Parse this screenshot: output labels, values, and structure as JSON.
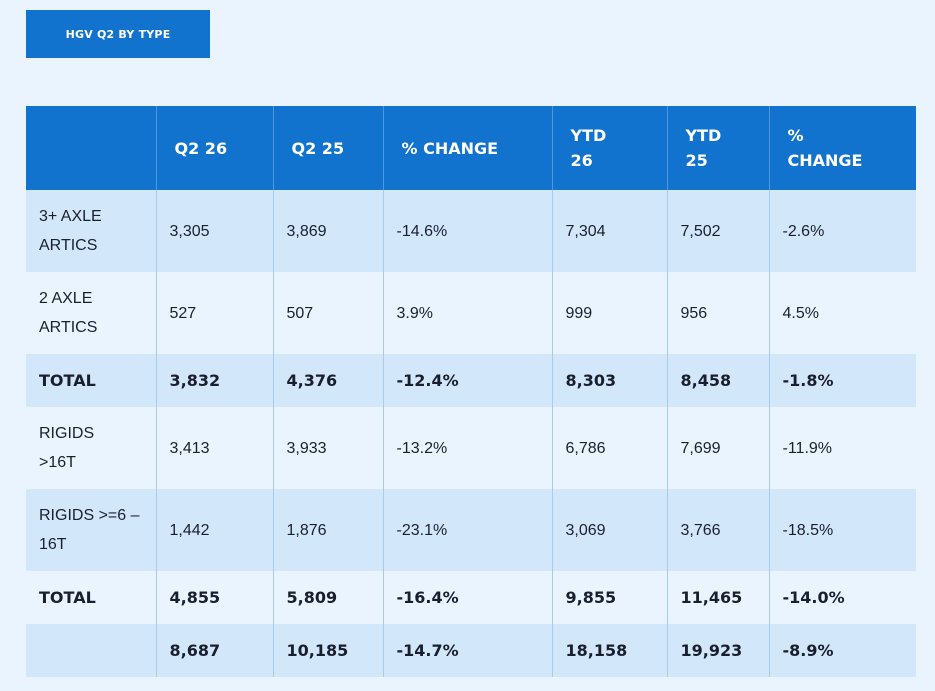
{
  "title": "HGV Q2 BY TYPE",
  "table": {
    "headers": [
      "",
      "Q2 26",
      "Q2 25",
      "% CHANGE",
      "YTD 26",
      "YTD 25",
      "% CHANGE"
    ],
    "rows": [
      {
        "label": "3+ AXLE ARTICS",
        "q2_26": "3,305",
        "q2_25": "3,869",
        "pct": "-14.6%",
        "ytd_26": "7,304",
        "ytd_25": "7,502",
        "ytd_pct": "-2.6%"
      },
      {
        "label": "2 AXLE ARTICS",
        "q2_26": "527",
        "q2_25": "507",
        "pct": "3.9%",
        "ytd_26": "999",
        "ytd_25": "956",
        "ytd_pct": "4.5%"
      },
      {
        "label": "TOTAL",
        "q2_26": "3,832",
        "q2_25": "4,376",
        "pct": "-12.4%",
        "ytd_26": "8,303",
        "ytd_25": "8,458",
        "ytd_pct": "-1.8%"
      },
      {
        "label": "RIGIDS >16T",
        "q2_26": "3,413",
        "q2_25": "3,933",
        "pct": "-13.2%",
        "ytd_26": "6,786",
        "ytd_25": "7,699",
        "ytd_pct": "-11.9%"
      },
      {
        "label": "RIGIDS >=6 – 16T",
        "q2_26": "1,442",
        "q2_25": "1,876",
        "pct": "-23.1%",
        "ytd_26": "3,069",
        "ytd_25": "3,766",
        "ytd_pct": "-18.5%"
      },
      {
        "label": "TOTAL",
        "q2_26": "4,855",
        "q2_25": "5,809",
        "pct": "-16.4%",
        "ytd_26": "9,855",
        "ytd_25": "11,465",
        "ytd_pct": "-14.0%"
      },
      {
        "label": "",
        "q2_26": "8,687",
        "q2_25": "10,185",
        "pct": "-14.7%",
        "ytd_26": "18,158",
        "ytd_25": "19,923",
        "ytd_pct": "-8.9%"
      }
    ]
  },
  "colors": {
    "header_bg": "#1273cf",
    "row_alt": "#d3e7fb",
    "row_plain": "#eaf4ff",
    "text": "#1a1f2e"
  }
}
